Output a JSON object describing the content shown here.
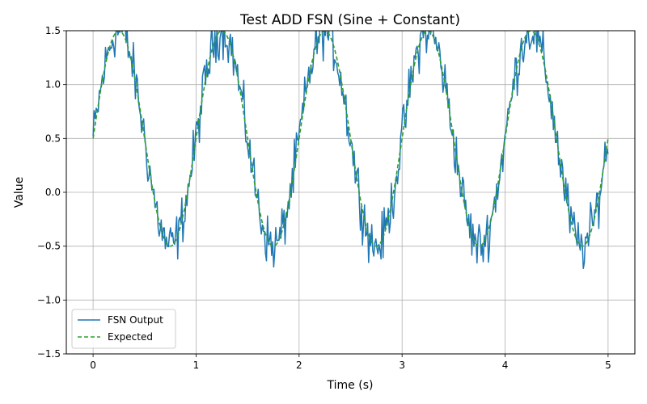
{
  "chart_data": {
    "type": "line",
    "title": "Test ADD FSN (Sine + Constant)",
    "xlabel": "Time (s)",
    "ylabel": "Value",
    "xlim": [
      -0.26,
      5.26
    ],
    "ylim": [
      -1.5,
      1.5
    ],
    "xticks": [
      0,
      1,
      2,
      3,
      4,
      5
    ],
    "xtick_labels": [
      "0",
      "1",
      "2",
      "3",
      "4",
      "5"
    ],
    "yticks": [
      -1.5,
      -1.0,
      -0.5,
      0.0,
      0.5,
      1.0,
      1.5
    ],
    "ytick_labels": [
      "−1.5",
      "−1.0",
      "−0.5",
      "0.0",
      "0.5",
      "1.0",
      "1.5"
    ],
    "grid": true,
    "legend_position": "lower-left",
    "series": [
      {
        "name": "FSN Output",
        "color": "#1f77b4",
        "style": "solid",
        "function": {
          "kind": "noisy_sine",
          "amplitude": 1.0,
          "frequency_hz": 1.0,
          "offset": 0.5,
          "noise_amplitude": 0.2,
          "x_start": 0,
          "x_end": 5,
          "samples": 500
        }
      },
      {
        "name": "Expected",
        "color": "#2ca02c",
        "style": "dashed",
        "function": {
          "kind": "sine",
          "amplitude": 1.0,
          "frequency_hz": 1.0,
          "offset": 0.5,
          "x_start": 0,
          "x_end": 5,
          "samples": 500
        }
      }
    ]
  }
}
